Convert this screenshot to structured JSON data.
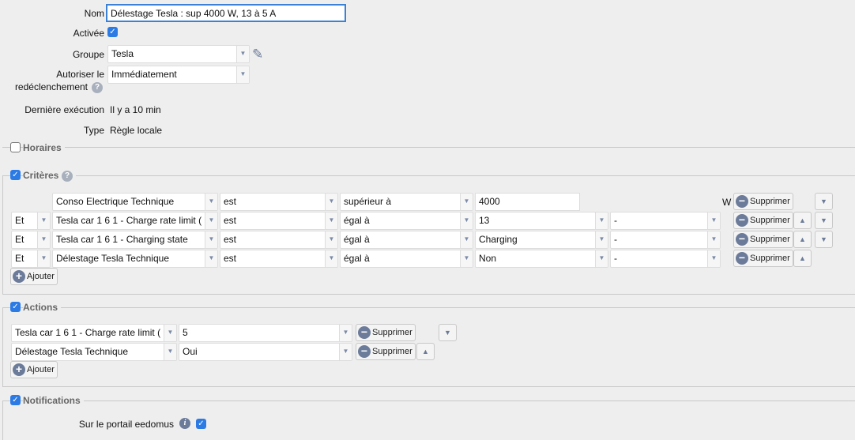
{
  "form": {
    "nom_label": "Nom",
    "nom_value": "Délestage Tesla : sup 4000 W, 13 à 5 A",
    "activee_label": "Activée",
    "activee_checked": true,
    "groupe_label": "Groupe",
    "groupe_value": "Tesla",
    "autoriser_label_1": "Autoriser le",
    "autoriser_label_2": "redéclenchement",
    "autoriser_value": "Immédiatement",
    "derniere_label": "Dernière exécution",
    "derniere_value": "Il y a 10 min",
    "type_label": "Type",
    "type_value": "Règle locale"
  },
  "horaires": {
    "label": "Horaires",
    "checked": false
  },
  "criteres": {
    "label": "Critères",
    "checked": true,
    "rows": [
      {
        "conj": "",
        "device": "Conso Electrique Technique",
        "verb": "est",
        "op": "supérieur à",
        "value": "4000",
        "unit": "W"
      },
      {
        "conj": "Et",
        "device": "Tesla car 1 6 1 - Charge rate limit (",
        "verb": "est",
        "op": "égal à",
        "value": "13",
        "extra": "-"
      },
      {
        "conj": "Et",
        "device": "Tesla car 1 6 1 - Charging state",
        "verb": "est",
        "op": "égal à",
        "value": "Charging",
        "extra": "-"
      },
      {
        "conj": "Et",
        "device": "Délestage Tesla Technique",
        "verb": "est",
        "op": "égal à",
        "value": "Non",
        "extra": "-"
      }
    ],
    "delete_label": "Supprimer",
    "add_label": "Ajouter"
  },
  "actions": {
    "label": "Actions",
    "checked": true,
    "rows": [
      {
        "device": "Tesla car 1 6 1 - Charge rate limit (",
        "value": "5"
      },
      {
        "device": "Délestage Tesla Technique",
        "value": "Oui"
      }
    ],
    "delete_label": "Supprimer",
    "add_label": "Ajouter"
  },
  "notifications": {
    "label": "Notifications",
    "checked": true,
    "portail_label": "Sur le portail eedomus",
    "portail_checked": true
  },
  "colors": {
    "accent": "#2c7be5",
    "icon": "#6b7b99"
  }
}
